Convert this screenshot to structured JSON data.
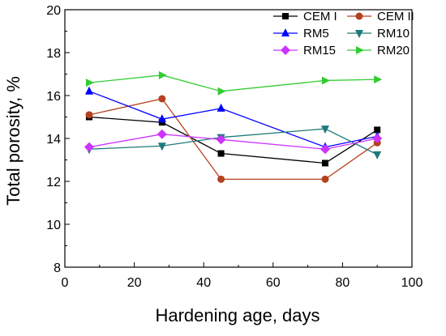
{
  "chart_data": {
    "type": "line",
    "title": "",
    "xlabel": "Hardening age, days",
    "ylabel": "Total porosity, %",
    "xlim": [
      0,
      100
    ],
    "ylim": [
      8,
      20
    ],
    "x_ticks": [
      "0",
      "20",
      "40",
      "60",
      "80",
      "100"
    ],
    "y_ticks": [
      "8",
      "10",
      "12",
      "14",
      "16",
      "18",
      "20"
    ],
    "grid": false,
    "legend_position": "top-right",
    "x": [
      7,
      28,
      45,
      75,
      90
    ],
    "series": [
      {
        "name": "CEM I",
        "color": "#000000",
        "marker": "square",
        "values": [
          15.0,
          14.75,
          13.3,
          12.85,
          14.4
        ]
      },
      {
        "name": "CEM II",
        "color": "#b5401e",
        "marker": "circle",
        "values": [
          15.1,
          15.85,
          12.1,
          12.1,
          13.8
        ]
      },
      {
        "name": "RM5",
        "color": "#0000ff",
        "marker": "triangle-up",
        "values": [
          16.2,
          14.9,
          15.4,
          13.6,
          14.1
        ]
      },
      {
        "name": "RM10",
        "color": "#1e7a7a",
        "marker": "triangle-down",
        "values": [
          13.5,
          13.65,
          14.05,
          14.45,
          13.25
        ]
      },
      {
        "name": "RM15",
        "color": "#cc33ff",
        "marker": "diamond",
        "values": [
          13.6,
          14.2,
          13.95,
          13.5,
          14.0
        ]
      },
      {
        "name": "RM20",
        "color": "#33cc33",
        "marker": "triangle-right",
        "values": [
          16.6,
          16.95,
          16.2,
          16.7,
          16.75
        ]
      }
    ]
  }
}
